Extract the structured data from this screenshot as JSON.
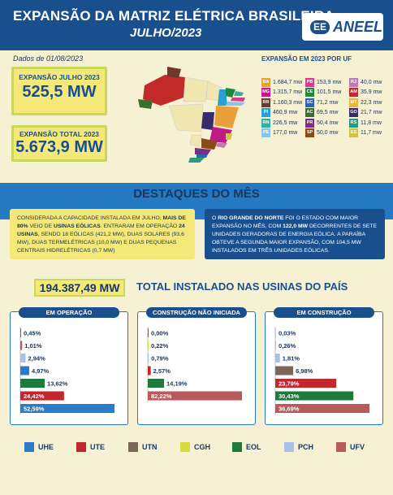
{
  "header": {
    "title": "EXPANSÃO DA MATRIZ ELÉTRICA BRASILEIRA",
    "subtitle": "JULHO/2023",
    "logo_text": "ANEEL",
    "logo_icon": "EE"
  },
  "date": "Dados de 01/08/2023",
  "kpis": [
    {
      "label": "EXPANSÃO JULHO 2023",
      "value": "525,5 MW"
    },
    {
      "label": "EXPANSÃO TOTAL 2023",
      "value": "5.673,9 MW"
    }
  ],
  "uf_section": {
    "title": "EXPANSÃO EM 2023 POR UF",
    "items": [
      {
        "code": "BA",
        "value": "1.684,7 mw",
        "color": "#e8a13a"
      },
      {
        "code": "MG",
        "value": "1.315,7 mw",
        "color": "#c2188a"
      },
      {
        "code": "RR",
        "value": "1.160,3 mw",
        "color": "#6c3a2a"
      },
      {
        "code": "PI",
        "value": "460,9 mw",
        "color": "#2a9fd6"
      },
      {
        "code": "RN",
        "value": "226,5 mw",
        "color": "#2fb1a0"
      },
      {
        "code": "PE",
        "value": "177,0 mw",
        "color": "#8cc3e8"
      },
      {
        "code": "PB",
        "value": "153,9 mw",
        "color": "#d63a8a"
      },
      {
        "code": "CE",
        "value": "101,5 mw",
        "color": "#1e8a3c"
      },
      {
        "code": "SC",
        "value": "71,2 mw",
        "color": "#2a64b8"
      },
      {
        "code": "AC",
        "value": "69,5 mw",
        "color": "#3d6e2c"
      },
      {
        "code": "PR",
        "value": "50,4 mw",
        "color": "#7a2f7e"
      },
      {
        "code": "SP",
        "value": "50,0 mw",
        "color": "#8a4a1a"
      },
      {
        "code": "RJ",
        "value": "40,0 mw",
        "color": "#c07ab0"
      },
      {
        "code": "AM",
        "value": "35,9 mw",
        "color": "#c22a2a"
      },
      {
        "code": "MT",
        "value": "22,3 mw",
        "color": "#e6b83a"
      },
      {
        "code": "GO",
        "value": "21,7 mw",
        "color": "#3a2a6a"
      },
      {
        "code": "RS",
        "value": "11,8 mw",
        "color": "#2a9a7a"
      },
      {
        "code": "ES",
        "value": "11,7 mw",
        "color": "#d0c24a"
      }
    ]
  },
  "highlights": {
    "title": "DESTAQUES DO MÊS",
    "left": {
      "t1": "CONSIDERADA A CAPACIDADE INSTALADA EM JULHO, ",
      "b1": "MAIS DE 80%",
      "t2": " VEIO DE ",
      "b2": "USINAS EÓLICAS",
      "t3": ". ENTRARAM EM OPERAÇÃO ",
      "b3": "24 USINAS",
      "t4": ", SENDO 18 EÓLICAS (421,2 MW), DUAS SOLARES (93,6 MW), DUAS TERMELÉTRICAS (10,0 MW) E DUAS PEQUENAS CENTRAIS HIDRELÉTRICAS (0,7 MW)"
    },
    "right": {
      "t1": "O ",
      "b1": "RIO GRANDE DO NORTE",
      "t2": " FOI O ESTADO COM MAIOR EXPANSÃO NO MÊS, COM ",
      "b2": "122,0 MW",
      "t3": " DECORRENTES DE SETE UNIDADES GERADORAS DE ENERGIA EÓLICA. A PARAÍBA OBTEVE A SEGUNDA MAIOR EXPANSÃO, COM 104,5 MW INSTALADOS EM TRÊS UNIDADES EÓLICAS."
    }
  },
  "total": {
    "value": "194.387,49 MW",
    "label": "TOTAL INSTALADO NAS USINAS DO PAÍS"
  },
  "colors": {
    "UHE": "#2a7cc8",
    "UTE": "#c4262e",
    "UTN": "#7b6658",
    "CGH": "#d8dc3a",
    "EOL": "#1c7a3a",
    "PCH": "#a9c0e8",
    "UFV": "#b85a5a"
  },
  "legend": [
    "UHE",
    "UTE",
    "UTN",
    "CGH",
    "EOL",
    "PCH",
    "UFV"
  ],
  "chart_data": [
    {
      "type": "bar",
      "title": "EM OPERAÇÃO",
      "categories": [
        "CGH",
        "PCH",
        "UTN",
        "UHE",
        "EOL",
        "UTE",
        "UFV"
      ],
      "bars": [
        {
          "cat": "UTN",
          "value": 0.45,
          "label": "0,45%"
        },
        {
          "cat": "UFV",
          "value": 1.01,
          "label": "1,01%"
        },
        {
          "cat": "PCH",
          "value": 2.94,
          "label": "2,94%"
        },
        {
          "cat": "UHE",
          "value": 4.97,
          "label": "4,97%"
        },
        {
          "cat": "EOL",
          "value": 13.62,
          "label": "13,62%"
        },
        {
          "cat": "UTE",
          "value": 24.42,
          "label": "24,42%"
        },
        {
          "cat": "UHE",
          "value": 52.59,
          "label": "52,59%"
        }
      ]
    },
    {
      "type": "bar",
      "title": "CONSTRUÇÃO NÃO INICIADA",
      "bars": [
        {
          "cat": "UTN",
          "value": 0.0,
          "label": "0,00%"
        },
        {
          "cat": "CGH",
          "value": 0.22,
          "label": "0,22%"
        },
        {
          "cat": "PCH",
          "value": 0.79,
          "label": "0,79%"
        },
        {
          "cat": "UTE",
          "value": 2.57,
          "label": "2,57%"
        },
        {
          "cat": "EOL",
          "value": 14.19,
          "label": "14,19%"
        },
        {
          "cat": "UFV",
          "value": 82.22,
          "label": "82,22%"
        }
      ]
    },
    {
      "type": "bar",
      "title": "EM CONSTRUÇÃO",
      "bars": [
        {
          "cat": "CGH",
          "value": 0.03,
          "label": "0,03%"
        },
        {
          "cat": "PCH",
          "value": 0.26,
          "label": "0,26%"
        },
        {
          "cat": "PCH",
          "value": 1.81,
          "label": "1,81%"
        },
        {
          "cat": "UTN",
          "value": 6.98,
          "label": "6,98%"
        },
        {
          "cat": "UTE",
          "value": 23.79,
          "label": "23,79%"
        },
        {
          "cat": "EOL",
          "value": 30.43,
          "label": "30,43%"
        },
        {
          "cat": "UFV",
          "value": 36.69,
          "label": "36,69%"
        }
      ]
    }
  ]
}
